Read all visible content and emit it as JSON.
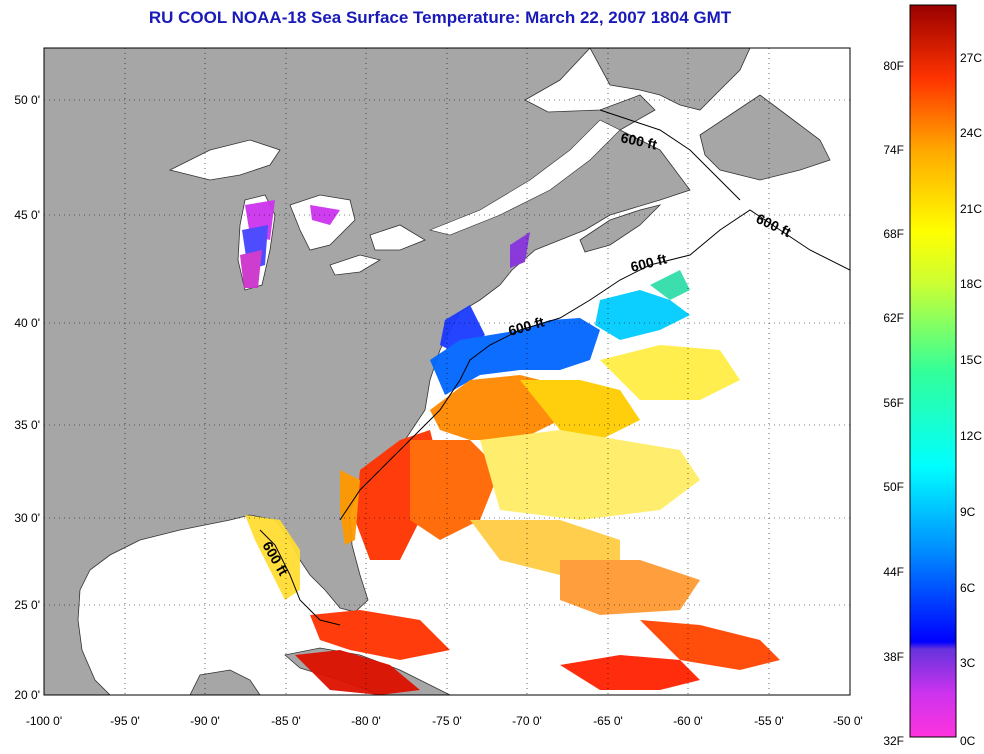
{
  "title": "RU COOL  NOAA-18  Sea Surface Temperature:  March 22, 2007 1804 GMT",
  "axes": {
    "lon_ticks": [
      "-100 0'",
      "-95 0'",
      "-90 0'",
      "-85 0'",
      "-80 0'",
      "-75 0'",
      "-70 0'",
      "-65 0'",
      "-60 0'",
      "-55 0'",
      "-50 0'"
    ],
    "lat_ticks": [
      "20 0'",
      "25 0'",
      "30 0'",
      "35 0'",
      "40 0'",
      "45 0'",
      "50 0'"
    ],
    "lon_range": [
      -100,
      -50
    ],
    "lat_range": [
      20,
      52.5
    ]
  },
  "contour_label": "600 ft",
  "colorbar": {
    "f_labels": [
      "80F",
      "74F",
      "68F",
      "62F",
      "56F",
      "50F",
      "44F",
      "38F",
      "32F"
    ],
    "c_labels": [
      "27C",
      "24C",
      "21C",
      "18C",
      "15C",
      "12C",
      "9C",
      "6C",
      "3C",
      "0C"
    ],
    "range_c": [
      0,
      29
    ],
    "colors": [
      "#ff33cc",
      "#9933dd",
      "#0000ff",
      "#0099ff",
      "#00ffff",
      "#33ff99",
      "#ffff00",
      "#ffaa00",
      "#ff3300",
      "#aa0000"
    ]
  },
  "colors": {
    "land": "#a6a6a6",
    "water": "#ffffff",
    "title": "#1a1ab8"
  }
}
